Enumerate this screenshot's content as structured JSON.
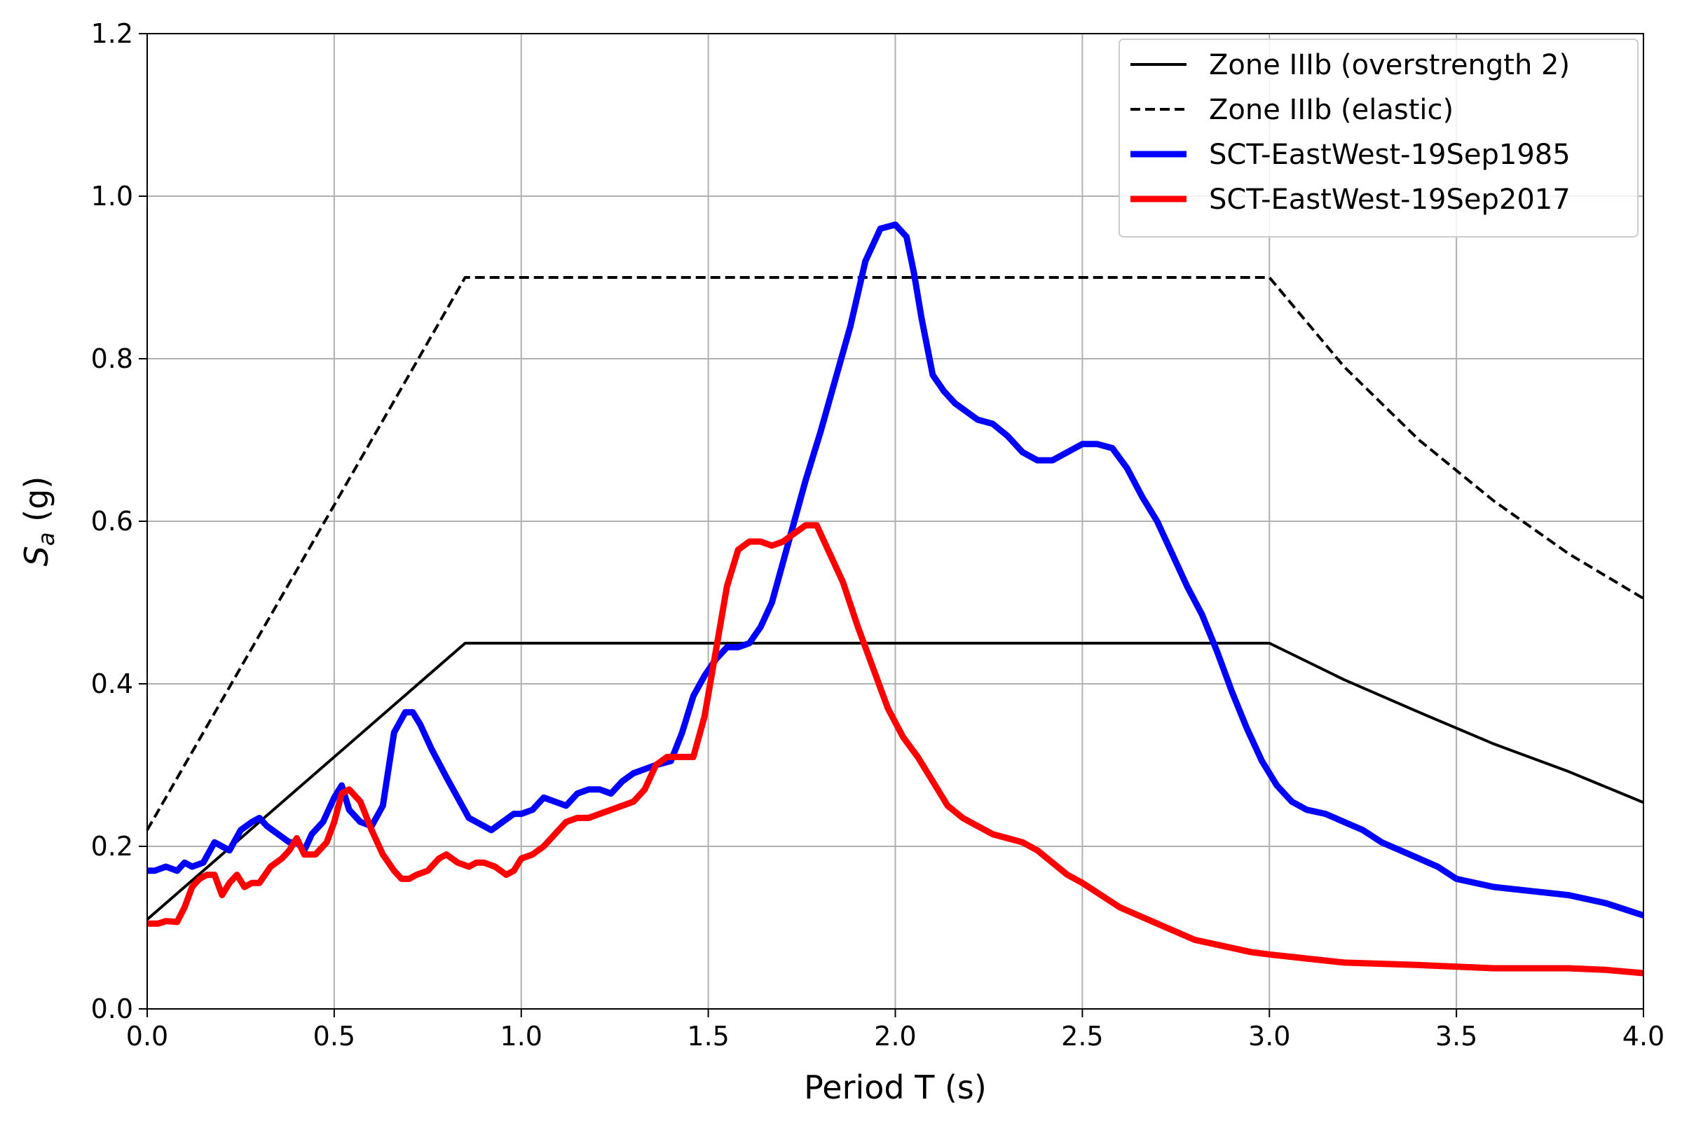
{
  "chart_data": {
    "type": "line",
    "title": "",
    "xlabel": "Period T (s)",
    "ylabel": "S",
    "ylabel_subscript": "a",
    "ylabel_unit": " (g)",
    "xlim": [
      0.0,
      4.0
    ],
    "ylim": [
      0.0,
      1.2
    ],
    "xticks": [
      0.0,
      0.5,
      1.0,
      1.5,
      2.0,
      2.5,
      3.0,
      3.5,
      4.0
    ],
    "yticks": [
      0.0,
      0.2,
      0.4,
      0.6,
      0.8,
      1.0,
      1.2
    ],
    "xtick_labels": [
      "0.0",
      "0.5",
      "1.0",
      "1.5",
      "2.0",
      "2.5",
      "3.0",
      "3.5",
      "4.0"
    ],
    "ytick_labels": [
      "0.0",
      "0.2",
      "0.4",
      "0.6",
      "0.8",
      "1.0",
      "1.2"
    ],
    "grid": true,
    "legend_position": "top-right",
    "series": [
      {
        "name": "Zone IIIb (overstrength 2)",
        "color": "#000000",
        "style": "solid",
        "x": [
          0.0,
          0.85,
          3.0,
          3.2,
          3.4,
          3.6,
          3.8,
          4.0
        ],
        "y": [
          0.11,
          0.45,
          0.45,
          0.405,
          0.365,
          0.326,
          0.292,
          0.254
        ]
      },
      {
        "name": "Zone IIIb (elastic)",
        "color": "#000000",
        "style": "dashed",
        "x": [
          0.0,
          0.85,
          3.0,
          3.2,
          3.4,
          3.6,
          3.8,
          4.0
        ],
        "y": [
          0.22,
          0.9,
          0.9,
          0.79,
          0.7,
          0.625,
          0.56,
          0.505
        ]
      },
      {
        "name": "SCT-EastWest-19Sep1985",
        "color": "#0000ff",
        "style": "solid",
        "x": [
          0.0,
          0.02,
          0.05,
          0.08,
          0.1,
          0.12,
          0.15,
          0.18,
          0.2,
          0.22,
          0.25,
          0.28,
          0.3,
          0.32,
          0.35,
          0.38,
          0.4,
          0.42,
          0.44,
          0.47,
          0.5,
          0.52,
          0.54,
          0.57,
          0.6,
          0.63,
          0.66,
          0.69,
          0.71,
          0.73,
          0.76,
          0.8,
          0.83,
          0.86,
          0.88,
          0.9,
          0.92,
          0.95,
          0.98,
          1.0,
          1.03,
          1.06,
          1.09,
          1.12,
          1.15,
          1.18,
          1.21,
          1.24,
          1.27,
          1.3,
          1.33,
          1.36,
          1.4,
          1.43,
          1.46,
          1.49,
          1.52,
          1.55,
          1.58,
          1.61,
          1.64,
          1.67,
          1.7,
          1.73,
          1.76,
          1.8,
          1.84,
          1.88,
          1.92,
          1.96,
          2.0,
          2.03,
          2.05,
          2.07,
          2.1,
          2.13,
          2.16,
          2.19,
          2.22,
          2.26,
          2.3,
          2.34,
          2.38,
          2.42,
          2.46,
          2.5,
          2.54,
          2.58,
          2.62,
          2.66,
          2.7,
          2.74,
          2.78,
          2.82,
          2.86,
          2.9,
          2.94,
          2.98,
          3.02,
          3.06,
          3.1,
          3.15,
          3.2,
          3.25,
          3.3,
          3.35,
          3.4,
          3.45,
          3.5,
          3.6,
          3.7,
          3.8,
          3.9,
          4.0
        ],
        "y": [
          0.17,
          0.17,
          0.175,
          0.17,
          0.18,
          0.175,
          0.18,
          0.205,
          0.2,
          0.195,
          0.22,
          0.23,
          0.235,
          0.225,
          0.215,
          0.205,
          0.205,
          0.195,
          0.215,
          0.23,
          0.26,
          0.275,
          0.245,
          0.23,
          0.225,
          0.25,
          0.34,
          0.365,
          0.365,
          0.35,
          0.32,
          0.285,
          0.26,
          0.235,
          0.23,
          0.225,
          0.22,
          0.23,
          0.24,
          0.24,
          0.245,
          0.26,
          0.255,
          0.25,
          0.265,
          0.27,
          0.27,
          0.265,
          0.28,
          0.29,
          0.295,
          0.3,
          0.305,
          0.34,
          0.385,
          0.41,
          0.43,
          0.445,
          0.445,
          0.45,
          0.47,
          0.5,
          0.55,
          0.6,
          0.65,
          0.71,
          0.775,
          0.84,
          0.92,
          0.96,
          0.965,
          0.95,
          0.905,
          0.85,
          0.78,
          0.76,
          0.745,
          0.735,
          0.725,
          0.72,
          0.705,
          0.685,
          0.675,
          0.675,
          0.685,
          0.695,
          0.695,
          0.69,
          0.665,
          0.63,
          0.6,
          0.56,
          0.52,
          0.485,
          0.44,
          0.39,
          0.345,
          0.305,
          0.275,
          0.255,
          0.245,
          0.24,
          0.23,
          0.22,
          0.205,
          0.195,
          0.185,
          0.175,
          0.16,
          0.15,
          0.145,
          0.14,
          0.13,
          0.115
        ]
      },
      {
        "name": "SCT-EastWest-19Sep2017",
        "color": "#ff0000",
        "style": "solid",
        "x": [
          0.0,
          0.03,
          0.05,
          0.08,
          0.1,
          0.12,
          0.14,
          0.16,
          0.18,
          0.2,
          0.22,
          0.24,
          0.26,
          0.28,
          0.3,
          0.33,
          0.36,
          0.38,
          0.4,
          0.42,
          0.45,
          0.48,
          0.5,
          0.52,
          0.54,
          0.57,
          0.6,
          0.63,
          0.66,
          0.68,
          0.7,
          0.72,
          0.75,
          0.78,
          0.8,
          0.83,
          0.86,
          0.88,
          0.9,
          0.93,
          0.96,
          0.98,
          1.0,
          1.03,
          1.06,
          1.09,
          1.12,
          1.15,
          1.18,
          1.21,
          1.24,
          1.27,
          1.3,
          1.33,
          1.36,
          1.39,
          1.42,
          1.46,
          1.49,
          1.52,
          1.55,
          1.58,
          1.61,
          1.64,
          1.67,
          1.7,
          1.73,
          1.76,
          1.79,
          1.82,
          1.86,
          1.9,
          1.94,
          1.98,
          2.02,
          2.06,
          2.1,
          2.14,
          2.18,
          2.22,
          2.26,
          2.3,
          2.34,
          2.38,
          2.42,
          2.46,
          2.5,
          2.55,
          2.6,
          2.65,
          2.7,
          2.75,
          2.8,
          2.85,
          2.9,
          2.95,
          3.0,
          3.1,
          3.2,
          3.4,
          3.6,
          3.7,
          3.8,
          3.9,
          4.0
        ],
        "y": [
          0.105,
          0.105,
          0.108,
          0.107,
          0.125,
          0.15,
          0.16,
          0.165,
          0.165,
          0.14,
          0.155,
          0.165,
          0.15,
          0.155,
          0.155,
          0.175,
          0.185,
          0.195,
          0.21,
          0.19,
          0.19,
          0.205,
          0.23,
          0.265,
          0.27,
          0.255,
          0.22,
          0.19,
          0.17,
          0.16,
          0.16,
          0.165,
          0.17,
          0.185,
          0.19,
          0.18,
          0.175,
          0.18,
          0.18,
          0.175,
          0.165,
          0.17,
          0.185,
          0.19,
          0.2,
          0.215,
          0.23,
          0.235,
          0.235,
          0.24,
          0.245,
          0.25,
          0.255,
          0.27,
          0.3,
          0.31,
          0.31,
          0.31,
          0.36,
          0.44,
          0.52,
          0.565,
          0.575,
          0.575,
          0.57,
          0.575,
          0.585,
          0.595,
          0.595,
          0.565,
          0.525,
          0.47,
          0.42,
          0.37,
          0.335,
          0.31,
          0.28,
          0.25,
          0.235,
          0.225,
          0.215,
          0.21,
          0.205,
          0.195,
          0.18,
          0.165,
          0.155,
          0.14,
          0.125,
          0.115,
          0.105,
          0.095,
          0.085,
          0.08,
          0.075,
          0.07,
          0.067,
          0.062,
          0.057,
          0.054,
          0.05,
          0.05,
          0.05,
          0.048,
          0.044
        ]
      }
    ]
  }
}
